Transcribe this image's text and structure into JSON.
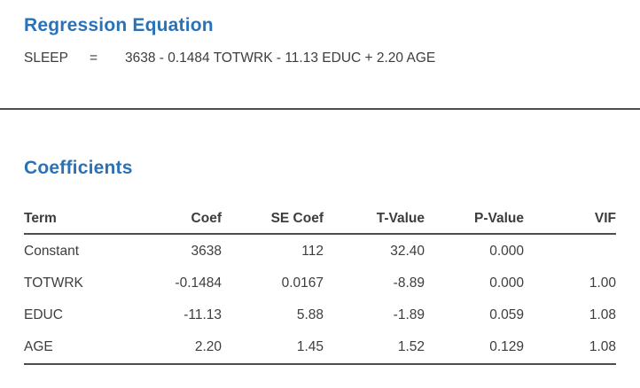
{
  "colors": {
    "accent": "#2A72B8",
    "text": "#3D3D3D",
    "rule": "#4D4D4D"
  },
  "regression_equation": {
    "title": "Regression Equation",
    "lhs": "SLEEP",
    "equals": "=",
    "rhs": "3638 - 0.1484 TOTWRK - 11.13 EDUC + 2.20 AGE"
  },
  "coefficients": {
    "title": "Coefficients",
    "headers": [
      "Term",
      "Coef",
      "SE Coef",
      "T-Value",
      "P-Value",
      "VIF"
    ],
    "rows": [
      [
        "Constant",
        "3638",
        "112",
        "32.40",
        "0.000",
        ""
      ],
      [
        "TOTWRK",
        "-0.1484",
        "0.0167",
        "-8.89",
        "0.000",
        "1.00"
      ],
      [
        "EDUC",
        "-11.13",
        "5.88",
        "-1.89",
        "0.059",
        "1.08"
      ],
      [
        "AGE",
        "2.20",
        "1.45",
        "1.52",
        "0.129",
        "1.08"
      ]
    ]
  },
  "chart_data": {
    "type": "table",
    "title": "Coefficients",
    "equation": "SLEEP = 3638 - 0.1484 TOTWRK - 11.13 EDUC + 2.20 AGE",
    "columns": [
      "Term",
      "Coef",
      "SE Coef",
      "T-Value",
      "P-Value",
      "VIF"
    ],
    "rows": [
      {
        "term": "Constant",
        "coef": 3638,
        "se_coef": 112,
        "t_value": 32.4,
        "p_value": 0.0,
        "vif": null
      },
      {
        "term": "TOTWRK",
        "coef": -0.1484,
        "se_coef": 0.0167,
        "t_value": -8.89,
        "p_value": 0.0,
        "vif": 1.0
      },
      {
        "term": "EDUC",
        "coef": -11.13,
        "se_coef": 5.88,
        "t_value": -1.89,
        "p_value": 0.059,
        "vif": 1.08
      },
      {
        "term": "AGE",
        "coef": 2.2,
        "se_coef": 1.45,
        "t_value": 1.52,
        "p_value": 0.129,
        "vif": 1.08
      }
    ]
  }
}
